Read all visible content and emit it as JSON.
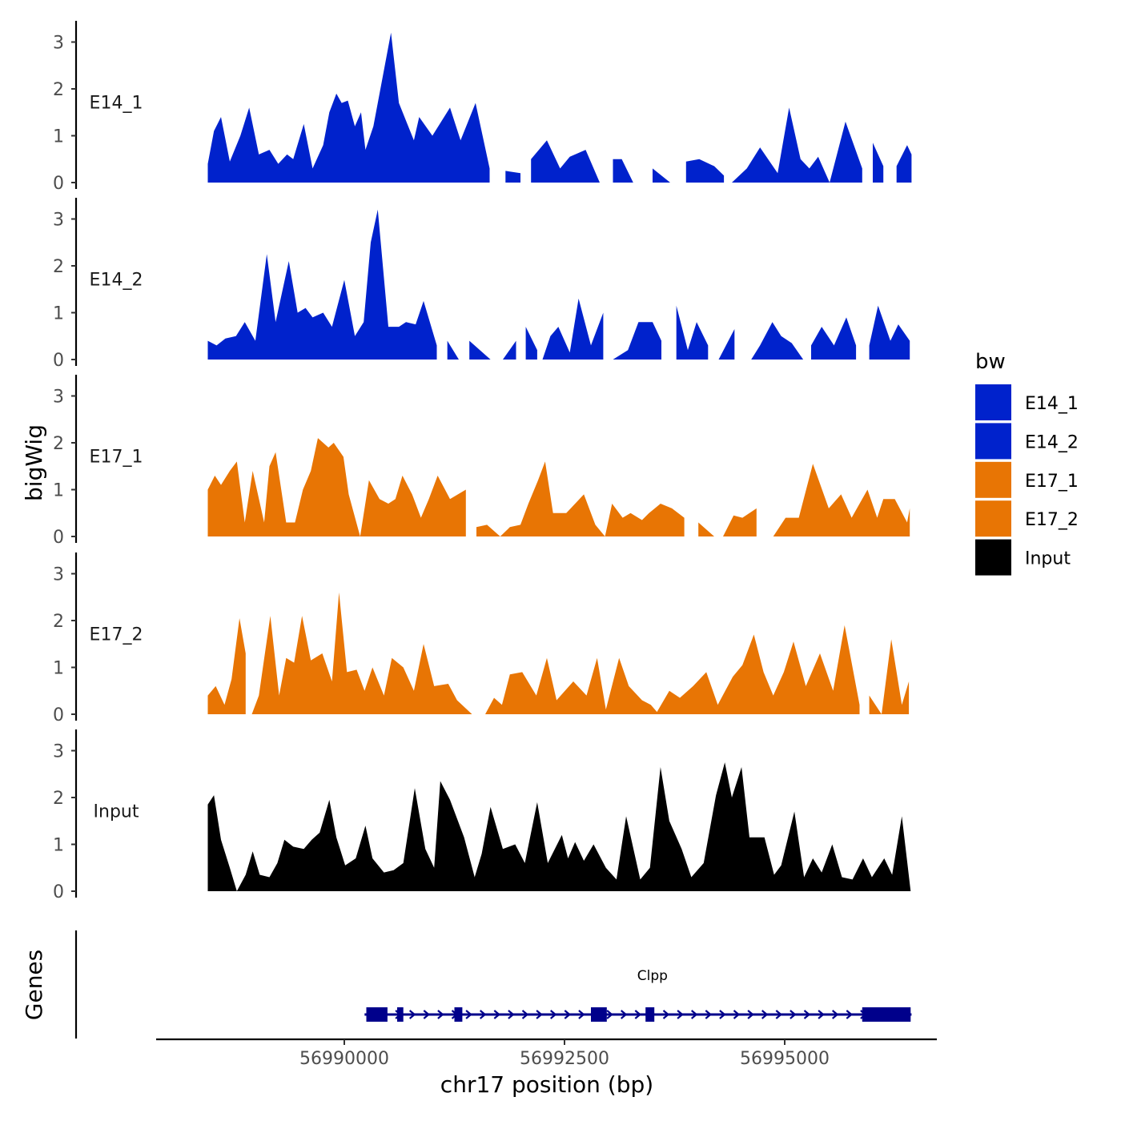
{
  "chart_data": {
    "type": "area",
    "subtype": "genome-coverage-tracks",
    "ylabel": "bigWig",
    "xlabel": "chr17 position (bp)",
    "genes_label": "Genes",
    "x_range": [
      56988450,
      56996440
    ],
    "x_ticks": [
      {
        "value": 56990000,
        "label": "56990000"
      },
      {
        "value": 56992500,
        "label": "56992500"
      },
      {
        "value": 56995000,
        "label": "56995000"
      }
    ],
    "y_range": [
      0,
      3.3
    ],
    "y_ticks": [
      "0",
      "1",
      "2",
      "3"
    ],
    "legend": {
      "title": "bw",
      "position": "right",
      "items": [
        {
          "label": "E14_1",
          "color": "#0022CC"
        },
        {
          "label": "E14_2",
          "color": "#0022CC"
        },
        {
          "label": "E17_1",
          "color": "#E87504"
        },
        {
          "label": "E17_2",
          "color": "#E87504"
        },
        {
          "label": "Input",
          "color": "#000000"
        }
      ]
    },
    "tracks": [
      {
        "name": "E14_1",
        "color": "#0022CC",
        "x": [
          56988450,
          56988520,
          56988600,
          56988700,
          56988820,
          56988920,
          56989030,
          56989150,
          56989250,
          56989350,
          56989420,
          56989540,
          56989640,
          56989760,
          56989830,
          56989910,
          56989970,
          56990040,
          56990120,
          56990190,
          56990240,
          56990330,
          56990460,
          56990530,
          56990620,
          56990790,
          56990850,
          56991000,
          56991200,
          56991320,
          56991490,
          56991650,
          56991830,
          56992000,
          56992120,
          56992300,
          56992450,
          56992560,
          56992740,
          56992900,
          56993050,
          56993150,
          56993280,
          56993500,
          56993700,
          56993880,
          56994030,
          56994200,
          56994310,
          56994400,
          56994570,
          56994720,
          56994920,
          56995050,
          56995180,
          56995280,
          56995380,
          56995510,
          56995690,
          56995880,
          56996000,
          56996120,
          56996270,
          56996390,
          56996440
        ],
        "y": [
          0.4,
          1.1,
          1.4,
          0.45,
          1.0,
          1.6,
          0.6,
          0.7,
          0.4,
          0.6,
          0.5,
          1.25,
          0.3,
          0.8,
          1.5,
          1.9,
          1.7,
          1.75,
          1.2,
          1.5,
          0.7,
          1.2,
          2.5,
          3.2,
          1.7,
          0.9,
          1.4,
          1.0,
          1.6,
          0.9,
          1.7,
          0.3,
          0.25,
          0.2,
          0.5,
          0.9,
          0.3,
          0.55,
          0.7,
          0.0,
          0.5,
          0.5,
          0.0,
          0.3,
          0.0,
          0.45,
          0.5,
          0.35,
          0.15,
          0.0,
          0.3,
          0.75,
          0.2,
          1.6,
          0.5,
          0.3,
          0.55,
          0.0,
          1.3,
          0.3,
          0.85,
          0.35,
          0.35,
          0.8,
          0.6
        ],
        "gaps": [
          [
            56991650,
            56991830
          ],
          [
            56992000,
            56992120
          ],
          [
            56992900,
            56993050
          ],
          [
            56993280,
            56993500
          ],
          [
            56993700,
            56993880
          ],
          [
            56994310,
            56994400
          ],
          [
            56995880,
            56996000
          ],
          [
            56996120,
            56996270
          ]
        ]
      },
      {
        "name": "E14_2",
        "color": "#0022CC",
        "x": [
          56988450,
          56988550,
          56988650,
          56988770,
          56988870,
          56988990,
          56989120,
          56989220,
          56989370,
          56989470,
          56989560,
          56989640,
          56989760,
          56989860,
          56990000,
          56990120,
          56990220,
          56990300,
          56990380,
          56990500,
          56990620,
          56990700,
          56990810,
          56990900,
          56991050,
          56991170,
          56991300,
          56991420,
          56991660,
          56991800,
          56991950,
          56992060,
          56992190,
          56992250,
          56992340,
          56992430,
          56992560,
          56992660,
          56992800,
          56992940,
          56993050,
          56993220,
          56993340,
          56993500,
          56993600,
          56993770,
          56993900,
          56994000,
          56994130,
          56994250,
          56994430,
          56994620,
          56994720,
          56994860,
          56994960,
          56995080,
          56995210,
          56995300,
          56995420,
          56995560,
          56995700,
          56995810,
          56995960,
          56996060,
          56996200,
          56996290,
          56996420
        ],
        "y": [
          0.4,
          0.3,
          0.45,
          0.5,
          0.8,
          0.4,
          2.25,
          0.8,
          2.1,
          1.0,
          1.1,
          0.9,
          1.0,
          0.7,
          1.7,
          0.5,
          0.8,
          2.5,
          3.2,
          0.7,
          0.7,
          0.8,
          0.75,
          1.25,
          0.3,
          0.4,
          0.0,
          0.4,
          0.0,
          0.0,
          0.4,
          0.7,
          0.2,
          0.0,
          0.5,
          0.7,
          0.15,
          1.3,
          0.3,
          1.0,
          0.0,
          0.2,
          0.8,
          0.8,
          0.4,
          1.15,
          0.2,
          0.8,
          0.3,
          0.0,
          0.65,
          0.0,
          0.3,
          0.8,
          0.5,
          0.35,
          0.0,
          0.3,
          0.7,
          0.3,
          0.9,
          0.3,
          0.3,
          1.15,
          0.4,
          0.75,
          0.4
        ],
        "gaps": [
          [
            56991050,
            56991170
          ],
          [
            56991300,
            56991420
          ],
          [
            56991660,
            56991800
          ],
          [
            56991950,
            56992060
          ],
          [
            56992190,
            56992250
          ],
          [
            56992940,
            56993050
          ],
          [
            56993600,
            56993770
          ],
          [
            56994130,
            56994250
          ],
          [
            56994430,
            56994620
          ],
          [
            56995210,
            56995300
          ],
          [
            56995810,
            56995960
          ]
        ]
      },
      {
        "name": "E17_1",
        "color": "#E87504",
        "x": [
          56988450,
          56988530,
          56988600,
          56988700,
          56988780,
          56988870,
          56988960,
          56989090,
          56989150,
          56989220,
          56989340,
          56989440,
          56989530,
          56989620,
          56989700,
          56989820,
          56989880,
          56989990,
          56990050,
          56990180,
          56990280,
          56990400,
          56990500,
          56990580,
          56990660,
          56990770,
          56990870,
          56990960,
          56991060,
          56991200,
          56991380,
          56991500,
          56991620,
          56991770,
          56991880,
          56992000,
          56992090,
          56992200,
          56992280,
          56992370,
          56992520,
          56992720,
          56992850,
          56992960,
          56993040,
          56993160,
          56993250,
          56993380,
          56993460,
          56993590,
          56993720,
          56993860,
          56994020,
          56994200,
          56994300,
          56994420,
          56994520,
          56994680,
          56994870,
          56995010,
          56995160,
          56995320,
          56995500,
          56995640,
          56995760,
          56995940,
          56996050,
          56996120,
          56996250,
          56996390,
          56996420
        ],
        "y": [
          1.0,
          1.3,
          1.1,
          1.4,
          1.6,
          0.3,
          1.4,
          0.3,
          1.5,
          1.8,
          0.3,
          0.3,
          1.0,
          1.4,
          2.1,
          1.9,
          2.0,
          1.7,
          0.9,
          0.0,
          1.2,
          0.8,
          0.7,
          0.8,
          1.3,
          0.9,
          0.4,
          0.8,
          1.3,
          0.8,
          1.0,
          0.2,
          0.25,
          0.0,
          0.2,
          0.25,
          0.7,
          1.2,
          1.6,
          0.5,
          0.5,
          0.9,
          0.25,
          0.0,
          0.7,
          0.4,
          0.5,
          0.35,
          0.5,
          0.7,
          0.6,
          0.4,
          0.3,
          0.0,
          0.0,
          0.45,
          0.4,
          0.6,
          0.0,
          0.4,
          0.4,
          1.55,
          0.6,
          0.9,
          0.4,
          1.0,
          0.4,
          0.8,
          0.8,
          0.3,
          0.6
        ],
        "gaps": [
          [
            56991380,
            56991500
          ],
          [
            56993860,
            56994020
          ],
          [
            56994200,
            56994300
          ],
          [
            56994680,
            56994870
          ]
        ]
      },
      {
        "name": "E17_2",
        "color": "#E87504",
        "x": [
          56988450,
          56988540,
          56988640,
          56988720,
          56988810,
          56988880,
          56988950,
          56989030,
          56989160,
          56989260,
          56989340,
          56989430,
          56989520,
          56989620,
          56989750,
          56989860,
          56989940,
          56990030,
          56990140,
          56990230,
          56990320,
          56990450,
          56990540,
          56990670,
          56990790,
          56990900,
          56991020,
          56991180,
          56991280,
          56991450,
          56991600,
          56991700,
          56991790,
          56991880,
          56992020,
          56992180,
          56992300,
          56992410,
          56992600,
          56992750,
          56992870,
          56992970,
          56993120,
          56993230,
          56993380,
          56993480,
          56993550,
          56993690,
          56993810,
          56993960,
          56994110,
          56994240,
          56994410,
          56994520,
          56994650,
          56994760,
          56994870,
          56994990,
          56995100,
          56995240,
          56995400,
          56995550,
          56995680,
          56995850,
          56995960,
          56996100,
          56996210,
          56996330,
          56996410
        ],
        "y": [
          0.4,
          0.6,
          0.2,
          0.75,
          2.05,
          1.3,
          0.0,
          0.4,
          2.1,
          0.4,
          1.2,
          1.1,
          2.1,
          1.15,
          1.3,
          0.7,
          2.6,
          0.9,
          0.95,
          0.5,
          1.0,
          0.4,
          1.2,
          1.0,
          0.5,
          1.5,
          0.6,
          0.65,
          0.3,
          0.0,
          0.0,
          0.35,
          0.2,
          0.85,
          0.9,
          0.4,
          1.2,
          0.3,
          0.7,
          0.4,
          1.2,
          0.1,
          1.2,
          0.6,
          0.3,
          0.2,
          0.05,
          0.5,
          0.35,
          0.6,
          0.9,
          0.2,
          0.8,
          1.05,
          1.7,
          0.9,
          0.4,
          0.9,
          1.55,
          0.6,
          1.3,
          0.5,
          1.9,
          0.2,
          0.4,
          0.0,
          1.6,
          0.2,
          0.7
        ],
        "gaps": [
          [
            56988880,
            56988950
          ],
          [
            56991450,
            56991600
          ],
          [
            56995850,
            56995960
          ]
        ]
      },
      {
        "name": "Input",
        "color": "#000000",
        "x": [
          56988450,
          56988520,
          56988600,
          56988700,
          56988780,
          56988880,
          56988960,
          56989040,
          56989150,
          56989240,
          56989320,
          56989420,
          56989540,
          56989630,
          56989720,
          56989830,
          56989910,
          56990010,
          56990130,
          56990240,
          56990320,
          56990450,
          56990560,
          56990670,
          56990800,
          56990920,
          56991020,
          56991090,
          56991200,
          56991360,
          56991480,
          56991560,
          56991660,
          56991800,
          56991940,
          56992050,
          56992190,
          56992310,
          56992470,
          56992540,
          56992620,
          56992720,
          56992830,
          56992970,
          56993090,
          56993200,
          56993360,
          56993470,
          56993590,
          56993690,
          56993830,
          56993940,
          56994080,
          56994220,
          56994320,
          56994400,
          56994510,
          56994600,
          56994770,
          56994880,
          56994960,
          56995110,
          56995220,
          56995320,
          56995420,
          56995540,
          56995650,
          56995770,
          56995890,
          56995990,
          56996130,
          56996220,
          56996330,
          56996430
        ],
        "y": [
          1.85,
          2.05,
          1.1,
          0.5,
          0.0,
          0.35,
          0.85,
          0.35,
          0.3,
          0.6,
          1.1,
          0.95,
          0.9,
          1.1,
          1.25,
          1.95,
          1.15,
          0.55,
          0.7,
          1.4,
          0.7,
          0.4,
          0.45,
          0.6,
          2.2,
          0.9,
          0.5,
          2.35,
          1.95,
          1.15,
          0.3,
          0.8,
          1.8,
          0.9,
          1.0,
          0.6,
          1.9,
          0.6,
          1.2,
          0.7,
          1.05,
          0.65,
          1.0,
          0.5,
          0.25,
          1.6,
          0.25,
          0.5,
          2.65,
          1.5,
          0.9,
          0.3,
          0.6,
          2.05,
          2.75,
          2.0,
          2.65,
          1.15,
          1.15,
          0.35,
          0.55,
          1.7,
          0.3,
          0.7,
          0.4,
          1.0,
          0.3,
          0.25,
          0.7,
          0.3,
          0.7,
          0.35,
          1.6,
          0.0
        ],
        "gaps": []
      }
    ],
    "gene_track": {
      "gene": "Clpp",
      "color": "#00008B",
      "strand": "+",
      "start": 56990230,
      "end": 56996440,
      "exons": [
        [
          56990250,
          56990490
        ],
        [
          56990600,
          56990670
        ],
        [
          56991250,
          56991340
        ],
        [
          56992800,
          56992980
        ],
        [
          56993420,
          56993520
        ],
        [
          56995880,
          56996430
        ]
      ]
    }
  }
}
